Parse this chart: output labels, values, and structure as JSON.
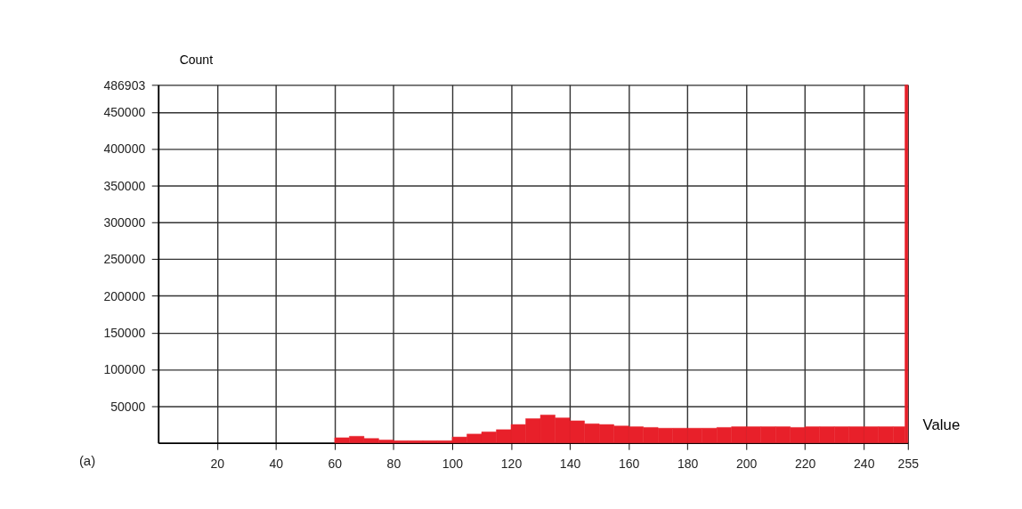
{
  "chart_data": {
    "type": "histogram",
    "xlabel": "Value",
    "ylabel": "Count",
    "annotations": [
      "(a)"
    ],
    "bins": [
      60,
      65,
      70,
      75,
      80,
      85,
      90,
      95,
      100,
      105,
      110,
      115,
      120,
      125,
      130,
      135,
      140,
      145,
      150,
      155,
      160,
      165,
      170,
      175,
      180,
      185,
      190,
      195,
      200,
      205,
      210,
      215,
      220,
      225,
      230,
      235,
      240,
      245,
      250,
      254,
      255
    ],
    "values": [
      7000,
      9000,
      6000,
      4000,
      3000,
      3000,
      3000,
      3000,
      8000,
      12000,
      15000,
      18000,
      25000,
      33000,
      38000,
      34000,
      30000,
      26000,
      25000,
      23000,
      22000,
      21000,
      20000,
      20000,
      20000,
      20000,
      21000,
      22000,
      22000,
      22000,
      22000,
      21000,
      22000,
      22000,
      22000,
      22000,
      22000,
      22000,
      22000,
      486903
    ],
    "color": "#e8202a",
    "xlim": [
      0,
      255
    ],
    "xticks": [
      20,
      40,
      60,
      80,
      100,
      120,
      140,
      160,
      180,
      200,
      220,
      240,
      255
    ],
    "ylim": [
      0,
      486903
    ],
    "yticks": [
      50000,
      100000,
      150000,
      200000,
      250000,
      300000,
      350000,
      400000,
      450000,
      486903
    ],
    "grid": true
  }
}
